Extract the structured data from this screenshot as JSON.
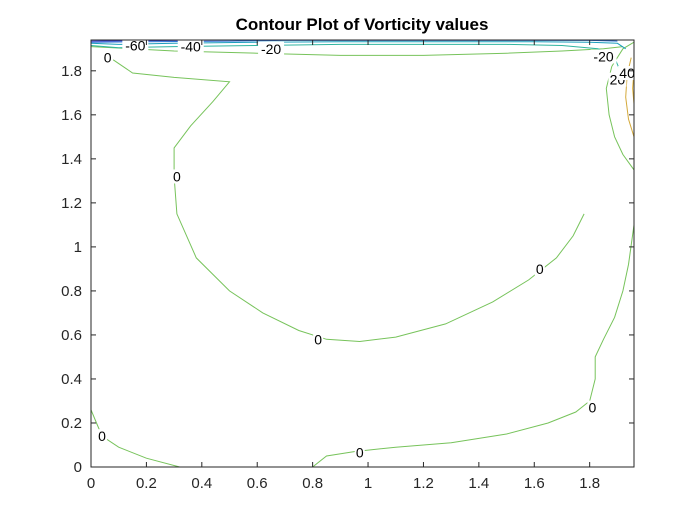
{
  "chart_data": {
    "type": "contour",
    "title": "Contour Plot of Vorticity values",
    "xlabel": "",
    "ylabel": "",
    "xlim": [
      0,
      1.96
    ],
    "ylim": [
      0,
      1.94
    ],
    "xticks": [
      0,
      0.2,
      0.4,
      0.6,
      0.8,
      1,
      1.2,
      1.4,
      1.6,
      1.8
    ],
    "xtick_labels": [
      "0",
      "0.2",
      "0.4",
      "0.6",
      "0.8",
      "1",
      "1.2",
      "1.4",
      "1.6",
      "1.8"
    ],
    "yticks": [
      0,
      0.2,
      0.4,
      0.6,
      0.8,
      1,
      1.2,
      1.4,
      1.6,
      1.8
    ],
    "ytick_labels": [
      "0",
      "0.2",
      "0.4",
      "0.6",
      "0.8",
      "1",
      "1.2",
      "1.4",
      "1.6",
      "1.8"
    ],
    "colors": {
      "zero": "#77c35b",
      "neg20": "#2fb5a0",
      "neg40": "#1c9fbe",
      "neg60": "#2a6fd6",
      "neg80": "#3f3fc8",
      "pos20": "#d4a93a",
      "pos40": "#e8b83a"
    },
    "contours": [
      {
        "level": 0,
        "color": "#77c35b",
        "points": [
          [
            0.08,
            1.85
          ],
          [
            0.15,
            1.79
          ],
          [
            0.3,
            1.77
          ],
          [
            0.5,
            1.75
          ],
          [
            0.44,
            1.66
          ],
          [
            0.36,
            1.55
          ],
          [
            0.3,
            1.45
          ],
          [
            0.3,
            1.32
          ],
          [
            0.31,
            1.15
          ],
          [
            0.38,
            0.95
          ],
          [
            0.5,
            0.8
          ],
          [
            0.62,
            0.7
          ],
          [
            0.75,
            0.62
          ],
          [
            0.85,
            0.58
          ],
          [
            0.97,
            0.57
          ],
          [
            1.1,
            0.59
          ],
          [
            1.28,
            0.65
          ],
          [
            1.45,
            0.75
          ],
          [
            1.58,
            0.85
          ],
          [
            1.68,
            0.95
          ],
          [
            1.74,
            1.05
          ],
          [
            1.78,
            1.15
          ]
        ]
      },
      {
        "level": 0,
        "color": "#77c35b",
        "points": [
          [
            0.8,
            0.0
          ],
          [
            0.85,
            0.05
          ],
          [
            0.95,
            0.07
          ],
          [
            1.1,
            0.09
          ],
          [
            1.3,
            0.11
          ],
          [
            1.5,
            0.15
          ],
          [
            1.65,
            0.2
          ],
          [
            1.75,
            0.25
          ],
          [
            1.8,
            0.3
          ],
          [
            1.82,
            0.4
          ],
          [
            1.82,
            0.5
          ],
          [
            1.85,
            0.58
          ],
          [
            1.89,
            0.68
          ],
          [
            1.92,
            0.8
          ],
          [
            1.94,
            0.92
          ],
          [
            1.96,
            1.1
          ]
        ]
      },
      {
        "level": 0,
        "color": "#77c35b",
        "points": [
          [
            0.0,
            0.26
          ],
          [
            0.02,
            0.2
          ],
          [
            0.04,
            0.14
          ],
          [
            0.1,
            0.09
          ],
          [
            0.2,
            0.04
          ],
          [
            0.32,
            0.0
          ]
        ]
      },
      {
        "level": 0,
        "color": "#77c35b",
        "points": [
          [
            1.96,
            1.35
          ],
          [
            1.92,
            1.42
          ],
          [
            1.89,
            1.5
          ],
          [
            1.87,
            1.6
          ],
          [
            1.86,
            1.72
          ],
          [
            1.88,
            1.82
          ],
          [
            1.92,
            1.9
          ],
          [
            1.96,
            1.93
          ]
        ]
      },
      {
        "level": 0,
        "color": "#77c35b",
        "points": [
          [
            0.0,
            1.91
          ],
          [
            0.3,
            1.89
          ],
          [
            0.6,
            1.88
          ],
          [
            0.9,
            1.87
          ],
          [
            1.2,
            1.87
          ],
          [
            1.5,
            1.88
          ],
          [
            1.7,
            1.89
          ],
          [
            1.85,
            1.9
          ],
          [
            1.92,
            1.91
          ]
        ]
      },
      {
        "level": -20,
        "color": "#2fb5a0",
        "points": [
          [
            0.0,
            1.915
          ],
          [
            0.1,
            1.905
          ],
          [
            0.3,
            1.91
          ],
          [
            0.6,
            1.915
          ],
          [
            0.9,
            1.92
          ],
          [
            1.2,
            1.92
          ],
          [
            1.5,
            1.92
          ],
          [
            1.7,
            1.915
          ],
          [
            1.83,
            1.9
          ],
          [
            1.89,
            1.86
          ],
          [
            1.91,
            1.8
          ],
          [
            1.93,
            1.74
          ]
        ]
      },
      {
        "level": -40,
        "color": "#1c9fbe",
        "points": [
          [
            0.0,
            1.925
          ],
          [
            0.1,
            1.92
          ],
          [
            0.3,
            1.925
          ],
          [
            0.6,
            1.93
          ],
          [
            0.9,
            1.932
          ],
          [
            1.3,
            1.932
          ],
          [
            1.6,
            1.932
          ],
          [
            1.8,
            1.93
          ],
          [
            1.9,
            1.925
          ],
          [
            1.93,
            1.9
          ]
        ]
      },
      {
        "level": -60,
        "color": "#2a6fd6",
        "points": [
          [
            0.0,
            1.93
          ],
          [
            0.2,
            1.932
          ],
          [
            0.5,
            1.935
          ],
          [
            0.7,
            1.938
          ],
          [
            1.8,
            1.938
          ],
          [
            1.9,
            1.935
          ]
        ]
      },
      {
        "level": -80,
        "color": "#3f3fc8",
        "points": [
          [
            0.0,
            1.935
          ],
          [
            0.3,
            1.938
          ],
          [
            0.5,
            1.94
          ]
        ]
      },
      {
        "level": 20,
        "color": "#d4a93a",
        "points": [
          [
            1.96,
            1.5
          ],
          [
            1.94,
            1.58
          ],
          [
            1.93,
            1.68
          ],
          [
            1.935,
            1.78
          ],
          [
            1.95,
            1.86
          ]
        ]
      },
      {
        "level": 40,
        "color": "#e8b83a",
        "points": [
          [
            1.96,
            1.65
          ],
          [
            1.955,
            1.72
          ],
          [
            1.96,
            1.8
          ]
        ]
      }
    ],
    "contour_labels": [
      {
        "text": "-60",
        "x": 0.16,
        "y": 1.915
      },
      {
        "text": "-40",
        "x": 0.36,
        "y": 1.91
      },
      {
        "text": "-20",
        "x": 0.65,
        "y": 1.9
      },
      {
        "text": "0",
        "x": 0.06,
        "y": 1.86
      },
      {
        "text": "-20",
        "x": 1.85,
        "y": 1.865
      },
      {
        "text": "20",
        "x": 1.9,
        "y": 1.76
      },
      {
        "text": "40",
        "x": 1.935,
        "y": 1.79
      },
      {
        "text": "0",
        "x": 0.31,
        "y": 1.32
      },
      {
        "text": "0",
        "x": 0.82,
        "y": 0.58
      },
      {
        "text": "0",
        "x": 1.62,
        "y": 0.9
      },
      {
        "text": "0",
        "x": 1.81,
        "y": 0.27
      },
      {
        "text": "0",
        "x": 0.97,
        "y": 0.065
      },
      {
        "text": "0",
        "x": 0.04,
        "y": 0.14
      }
    ]
  }
}
